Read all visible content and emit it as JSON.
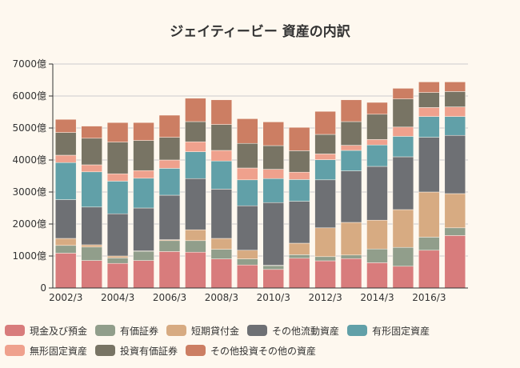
{
  "background": "#fef8ef",
  "chart_data": {
    "type": "bar",
    "stacked": true,
    "title": "ジェイティービー 資産の内訳",
    "xlabel": "",
    "ylabel": "",
    "ylim": [
      0,
      7000
    ],
    "y_ticks": [
      0,
      1000,
      2000,
      3000,
      4000,
      5000,
      6000,
      7000
    ],
    "y_tick_labels": [
      "0",
      "1000億",
      "2000億",
      "3000億",
      "4000億",
      "5000億",
      "6000億",
      "7000億"
    ],
    "grid": true,
    "legend_position": "bottom",
    "categories": [
      "2002/3",
      "2003/3",
      "2004/3",
      "2005/3",
      "2006/3",
      "2007/3",
      "2008/3",
      "2009/3",
      "2010/3",
      "2011/3",
      "2012/3",
      "2013/3",
      "2014/3",
      "2015/3",
      "2016/3",
      "2017/3"
    ],
    "x_tick_labels": [
      "2002/3",
      "",
      "2004/3",
      "",
      "2006/3",
      "",
      "2008/3",
      "",
      "2010/3",
      "",
      "2012/3",
      "",
      "2014/3",
      "",
      "2016/3",
      ""
    ],
    "series": [
      {
        "name": "現金及び預金",
        "color": "#d87c7c",
        "values": [
          1090,
          860,
          770,
          860,
          1140,
          1120,
          910,
          720,
          580,
          930,
          850,
          920,
          790,
          680,
          1180,
          1640
        ]
      },
      {
        "name": "有価証券",
        "color": "#919e8b",
        "values": [
          240,
          420,
          170,
          290,
          340,
          360,
          300,
          190,
          120,
          110,
          130,
          110,
          430,
          590,
          410,
          240
        ]
      },
      {
        "name": "短期貸付金",
        "color": "#d7ab82",
        "values": [
          220,
          70,
          60,
          10,
          30,
          340,
          340,
          270,
          10,
          360,
          900,
          1020,
          900,
          1180,
          1410,
          1070
        ]
      },
      {
        "name": "その他流動資産",
        "color": "#6e7074",
        "values": [
          1210,
          1180,
          1320,
          1340,
          1390,
          1600,
          1540,
          1390,
          1960,
          1310,
          1500,
          1610,
          1680,
          1650,
          1710,
          1820
        ]
      },
      {
        "name": "有形固定資産",
        "color": "#61a0a8",
        "values": [
          1160,
          1100,
          1020,
          930,
          840,
          840,
          880,
          810,
          750,
          680,
          630,
          640,
          670,
          640,
          650,
          590
        ]
      },
      {
        "name": "無形固定資産",
        "color": "#efa18d",
        "values": [
          230,
          220,
          230,
          240,
          260,
          310,
          330,
          370,
          290,
          230,
          180,
          160,
          170,
          290,
          280,
          300
        ]
      },
      {
        "name": "投資有価証券",
        "color": "#787464",
        "values": [
          710,
          830,
          990,
          940,
          710,
          630,
          810,
          770,
          740,
          670,
          610,
          740,
          790,
          880,
          470,
          480
        ]
      },
      {
        "name": "その他投資その他の資産",
        "color": "#cc7e63",
        "values": [
          410,
          380,
          610,
          560,
          690,
          730,
          770,
          770,
          740,
          730,
          720,
          680,
          370,
          330,
          330,
          300
        ]
      }
    ]
  }
}
